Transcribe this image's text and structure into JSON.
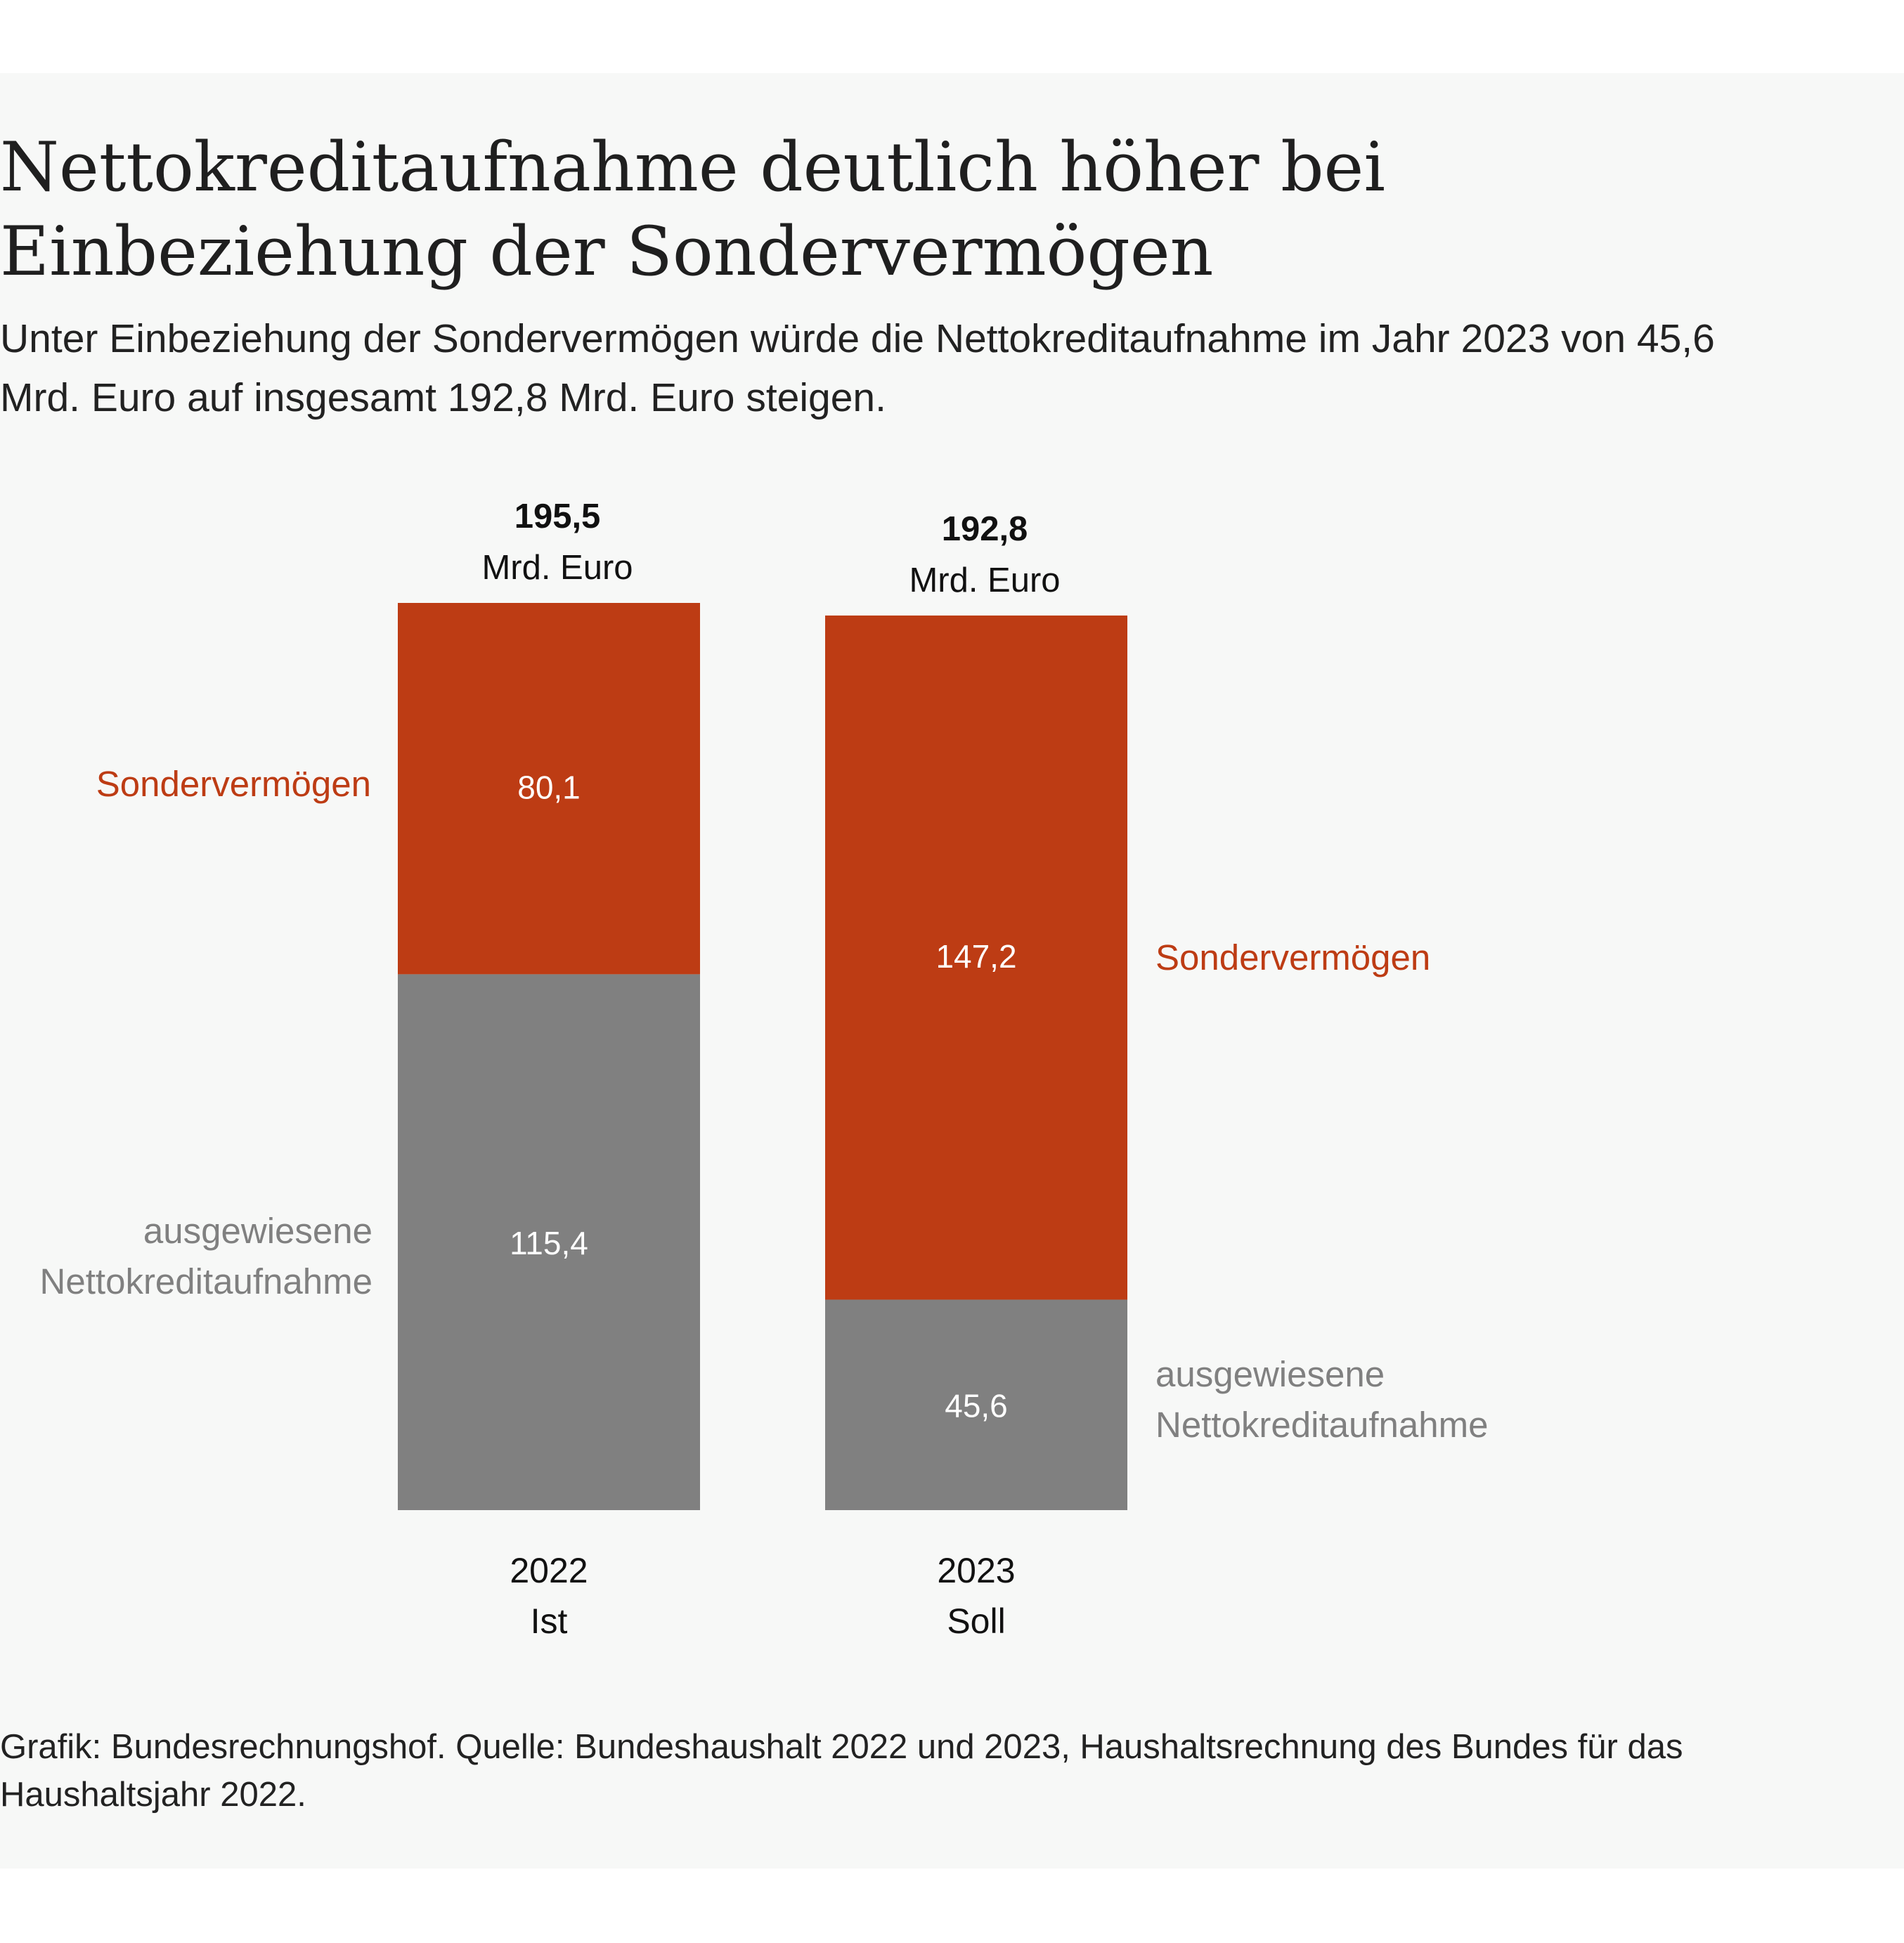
{
  "title": "Nettokreditaufnahme deutlich höher bei Einbeziehung der Sondervermögen",
  "subtitle": "Unter Einbeziehung der Sondervermögen würde die Nettokreditaufnahme im Jahr 2023 von 45,6 Mrd. Euro auf insgesamt 192,8 Mrd. Euro steigen.",
  "source": "Grafik: Bundesrechnungshof. Quelle: Bundeshaushalt 2022 und 2023, Haushaltsrechnung des Bundes für das Haushaltsjahr 2022.",
  "colors": {
    "sondervermoegen": "#bd3c14",
    "netto": "#808080",
    "background": "#f7f8f7"
  },
  "chart_data": {
    "type": "bar",
    "stacked": true,
    "categories": [
      {
        "year": "2022",
        "label": "Ist"
      },
      {
        "year": "2023",
        "label": "Soll"
      }
    ],
    "totals": [
      "195,5",
      "192,8"
    ],
    "total_unit": "Mrd. Euro",
    "series": [
      {
        "name": "ausgewiesene Nettokreditaufnahme",
        "values": [
          115.4,
          45.6
        ],
        "labels": [
          "115,4",
          "45,6"
        ],
        "color": "#808080"
      },
      {
        "name": "Sondervermögen",
        "values": [
          80.1,
          147.2
        ],
        "labels": [
          "80,1",
          "147,2"
        ],
        "color": "#bd3c14"
      }
    ],
    "series_label_lines": {
      "ausgewiesene Nettokreditaufnahme": [
        "ausgewiesene",
        "Nettokreditaufnahme"
      ],
      "Sondervermögen": [
        "Sondervermögen"
      ]
    },
    "legend": "direct labels beside bars",
    "grid": false,
    "ylim": [
      0,
      195.5
    ]
  }
}
